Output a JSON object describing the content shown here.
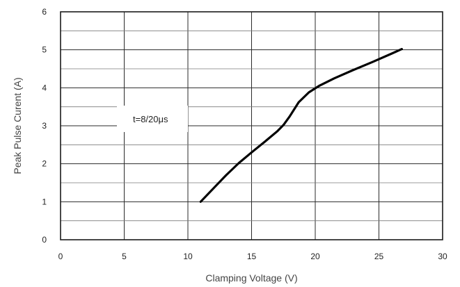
{
  "chart_data": {
    "type": "line",
    "title": "",
    "xlabel": "Clamping Voltage (V)",
    "ylabel": "Peak  Pulse Curent (A)",
    "xlim": [
      0,
      30
    ],
    "ylim": [
      0,
      6
    ],
    "x_ticks": [
      "0",
      "5",
      "10",
      "15",
      "20",
      "25",
      "30"
    ],
    "y_ticks": [
      "0",
      "1",
      "2",
      "3",
      "4",
      "5",
      "6"
    ],
    "grid": true,
    "annotation": "t=8/20μs",
    "series": [
      {
        "x": [
          11.0,
          12.0,
          13.0,
          14.0,
          15.0,
          16.0,
          17.0,
          17.5,
          18.0,
          18.7,
          19.5,
          20.3,
          21.5,
          23.0,
          24.5,
          26.0,
          26.8
        ],
        "y": [
          1.0,
          1.35,
          1.7,
          2.02,
          2.3,
          2.57,
          2.85,
          3.02,
          3.25,
          3.62,
          3.88,
          4.05,
          4.25,
          4.47,
          4.68,
          4.9,
          5.02
        ]
      }
    ]
  }
}
